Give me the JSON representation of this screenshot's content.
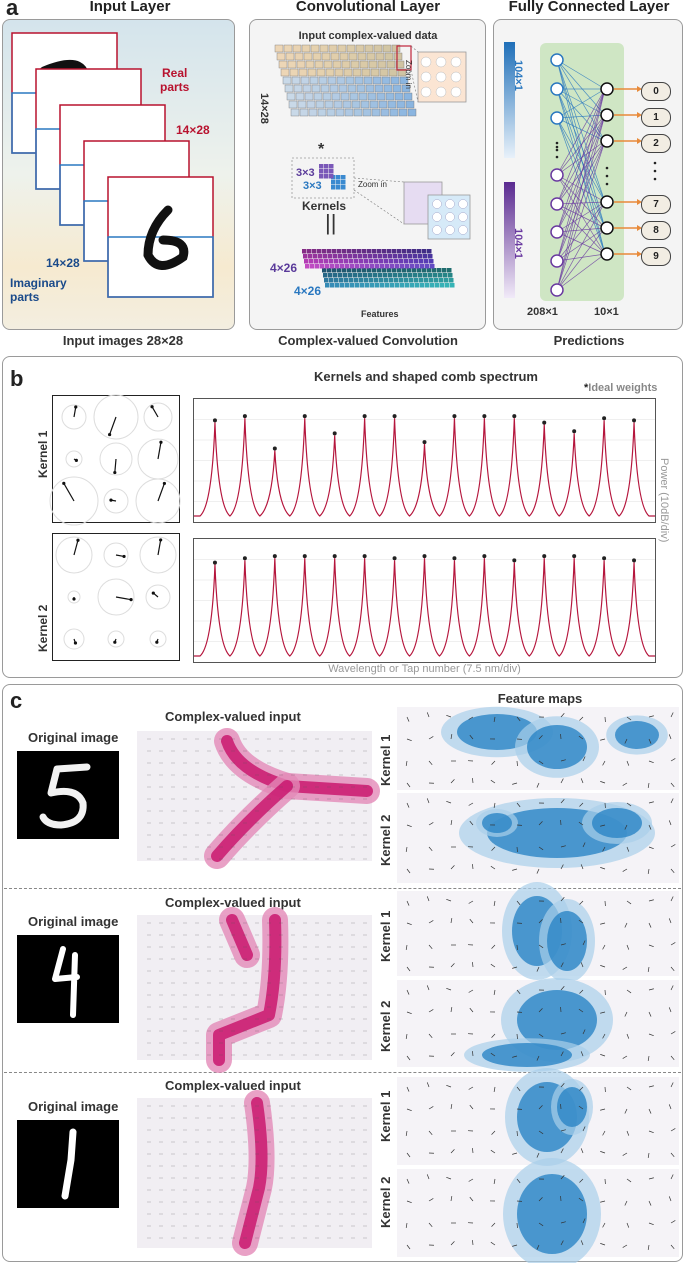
{
  "panel_a": {
    "letter": "a",
    "input_layer": {
      "title": "Input Layer",
      "real_parts": "Real\nparts",
      "dim_top": "14×28",
      "dim_bottom": "14×28",
      "imaginary_parts": "Imaginary\nparts",
      "caption": "Input images 28×28"
    },
    "conv_layer": {
      "title": "Convolutional Layer",
      "input_label": "Input complex-valued data",
      "dim_left": "14×28",
      "zoom_in_1": "Zoom in",
      "zoom_in_2": "Zoom in",
      "asterisk": "*",
      "k1": "3×3",
      "k2": "3×3",
      "kernels": "Kernels",
      "equals": "||",
      "f1": "4×26",
      "f2": "4×26",
      "features": "Features",
      "caption": "Complex-valued Convolution"
    },
    "fc_layer": {
      "title": "Fully Connected Layer",
      "bar1": "104×1",
      "bar2": "104×1",
      "dim_in": "208×1",
      "dim_out": "10×1",
      "caption": "Predictions",
      "outputs": [
        "0",
        "1",
        "2",
        "7",
        "8",
        "9"
      ]
    }
  },
  "panel_b": {
    "letter": "b",
    "title": "Kernels and shaped comb spectrum",
    "legend": "Ideal weights",
    "legend_marker": "*",
    "kernel1": "Kernel 1",
    "kernel2": "Kernel 2",
    "ylabel": "Power (10dB/div)",
    "xlabel": "Wavelength or Tap number (7.5 nm/div)",
    "kernel1_peaks": [
      0.92,
      0.96,
      0.66,
      0.96,
      0.8,
      0.96,
      0.96,
      0.72,
      0.96,
      0.96,
      0.96,
      0.9,
      0.82,
      0.94,
      0.92
    ],
    "kernel2_peaks": [
      0.9,
      0.94,
      0.96,
      0.96,
      0.96,
      0.96,
      0.94,
      0.96,
      0.94,
      0.96,
      0.92,
      0.96,
      0.96,
      0.94,
      0.92
    ]
  },
  "panel_c": {
    "letter": "c",
    "feature_maps": "Feature maps",
    "rows": [
      {
        "original": "Original image",
        "complex": "Complex-valued input",
        "k1": "Kernel 1",
        "k2": "Kernel 2"
      },
      {
        "original": "Original image",
        "complex": "Complex-valued input",
        "k1": "Kernel 1",
        "k2": "Kernel 2"
      },
      {
        "original": "Original image",
        "complex": "Complex-valued input",
        "k1": "Kernel 1",
        "k2": "Kernel 2"
      }
    ]
  },
  "colors": {
    "red": "#b8122e",
    "blue": "#2a78c0",
    "purple": "#6a3aa0",
    "peak": "#b5163d",
    "magenta": "#d6257a",
    "fmblue": "#1f7fc4"
  }
}
